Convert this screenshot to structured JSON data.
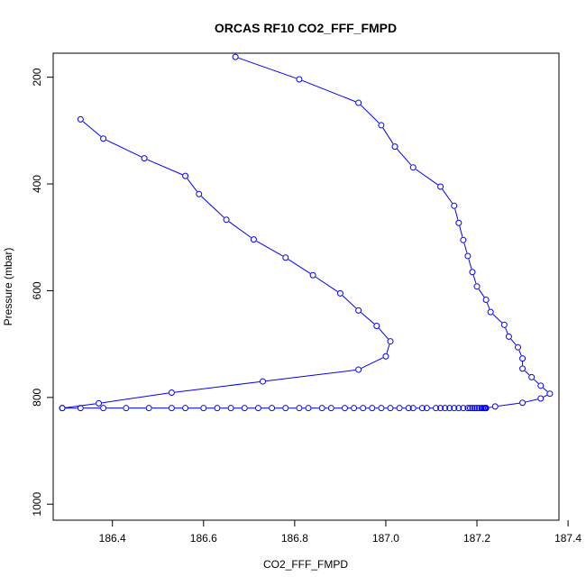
{
  "chart_data": {
    "type": "scatter",
    "title": "ORCAS RF10 CO2_FFF_FMPD",
    "xlabel": "CO2_FFF_FMPD",
    "ylabel": "Pressure (mbar)",
    "xlim": [
      186.27,
      187.38
    ],
    "ylim": [
      1030,
      155
    ],
    "y_reversed": true,
    "xticks": [
      186.4,
      186.6,
      186.8,
      187.0,
      187.2,
      187.4
    ],
    "xtick_labels": [
      "186.4",
      "186.6",
      "186.8",
      "187.0",
      "187.2",
      "187.4"
    ],
    "yticks": [
      200,
      400,
      600,
      800,
      1000
    ],
    "ytick_labels": [
      "200",
      "400",
      "600",
      "800",
      "1000"
    ],
    "grid": false,
    "colors": {
      "series": "#0000ff",
      "axes": "#000000"
    },
    "series": [
      {
        "mode": "line+markers",
        "points": [
          [
            186.67,
            162
          ],
          [
            186.81,
            204
          ],
          [
            186.94,
            248
          ],
          [
            186.99,
            290
          ],
          [
            187.02,
            330
          ],
          [
            187.06,
            369
          ],
          [
            187.12,
            405
          ],
          [
            187.15,
            441
          ],
          [
            187.16,
            473
          ],
          [
            187.17,
            505
          ],
          [
            187.18,
            535
          ],
          [
            187.19,
            565
          ],
          [
            187.2,
            592
          ],
          [
            187.22,
            617
          ],
          [
            187.23,
            640
          ],
          [
            187.26,
            664
          ],
          [
            187.27,
            686
          ],
          [
            187.29,
            706
          ],
          [
            187.3,
            727
          ],
          [
            187.3,
            746
          ],
          [
            187.32,
            762
          ],
          [
            187.34,
            778
          ],
          [
            187.36,
            793
          ],
          [
            187.34,
            802
          ],
          [
            187.3,
            810
          ],
          [
            187.24,
            817
          ],
          [
            187.22,
            820
          ]
        ]
      },
      {
        "mode": "line+markers",
        "points": [
          [
            186.33,
            279
          ],
          [
            186.38,
            315
          ],
          [
            186.47,
            352
          ],
          [
            186.56,
            385
          ],
          [
            186.59,
            419
          ],
          [
            186.65,
            467
          ],
          [
            186.71,
            504
          ],
          [
            186.78,
            538
          ],
          [
            186.84,
            571
          ],
          [
            186.9,
            605
          ],
          [
            186.94,
            637
          ],
          [
            186.98,
            666
          ],
          [
            187.01,
            695
          ],
          [
            187.0,
            723
          ],
          [
            186.94,
            748
          ],
          [
            186.73,
            770
          ],
          [
            186.53,
            791
          ],
          [
            186.37,
            811
          ],
          [
            186.29,
            820
          ]
        ]
      },
      {
        "mode": "line+markers",
        "points": [
          [
            186.29,
            820
          ],
          [
            186.33,
            820
          ],
          [
            186.38,
            820
          ],
          [
            186.43,
            820
          ],
          [
            186.48,
            820
          ],
          [
            186.53,
            820
          ],
          [
            186.56,
            820
          ],
          [
            186.6,
            820
          ],
          [
            186.63,
            820
          ],
          [
            186.66,
            820
          ],
          [
            186.69,
            820
          ],
          [
            186.72,
            820
          ],
          [
            186.75,
            820
          ],
          [
            186.78,
            820
          ],
          [
            186.81,
            820
          ],
          [
            186.83,
            820
          ],
          [
            186.86,
            820
          ],
          [
            186.88,
            820
          ],
          [
            186.91,
            820
          ],
          [
            186.93,
            820
          ],
          [
            186.95,
            820
          ],
          [
            186.97,
            820
          ],
          [
            186.99,
            820
          ],
          [
            187.01,
            820
          ],
          [
            187.03,
            820
          ],
          [
            187.05,
            820
          ],
          [
            187.06,
            820
          ],
          [
            187.08,
            820
          ],
          [
            187.09,
            820
          ],
          [
            187.11,
            820
          ],
          [
            187.12,
            820
          ],
          [
            187.13,
            820
          ],
          [
            187.14,
            820
          ],
          [
            187.15,
            820
          ],
          [
            187.16,
            820
          ],
          [
            187.17,
            820
          ],
          [
            187.18,
            820
          ],
          [
            187.185,
            820
          ],
          [
            187.19,
            820
          ],
          [
            187.195,
            820
          ],
          [
            187.2,
            820
          ],
          [
            187.205,
            820
          ],
          [
            187.21,
            820
          ],
          [
            187.213,
            820
          ],
          [
            187.216,
            820
          ],
          [
            187.218,
            820
          ],
          [
            187.22,
            820
          ]
        ]
      }
    ]
  }
}
